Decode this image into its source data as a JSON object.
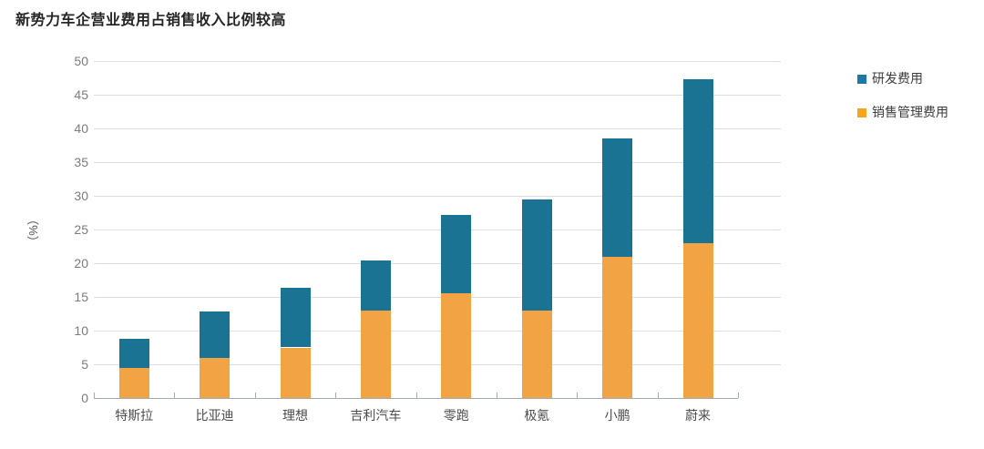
{
  "chart_data": {
    "type": "bar",
    "stacked": true,
    "title": "新势力车企营业费用占销售收入比例较高",
    "categories": [
      "特斯拉",
      "比亚迪",
      "理想",
      "吉利汽车",
      "零跑",
      "极氪",
      "小鹏",
      "蔚来"
    ],
    "series": [
      {
        "name": "销售管理费用",
        "color": "#F2A444",
        "values": [
          4.5,
          6.0,
          7.5,
          13.0,
          15.5,
          13.0,
          21.0,
          23.0
        ]
      },
      {
        "name": "研发费用",
        "color": "#1A7392",
        "values": [
          4.3,
          6.8,
          8.9,
          7.4,
          11.7,
          16.5,
          17.5,
          24.3
        ]
      }
    ],
    "totals": [
      8.8,
      12.8,
      16.4,
      20.4,
      27.2,
      29.5,
      38.5,
      47.3
    ],
    "ylabel": "（%）",
    "ylim": [
      0,
      50
    ],
    "ytick_step": 5,
    "yticks": [
      0,
      5,
      10,
      15,
      20,
      25,
      30,
      35,
      40,
      45,
      50
    ],
    "grid": true,
    "legend_position": "right",
    "legend": [
      {
        "label": "研发费用",
        "color": "#1C78A6"
      },
      {
        "label": "销售管理费用",
        "color": "#F9A41D"
      }
    ]
  }
}
